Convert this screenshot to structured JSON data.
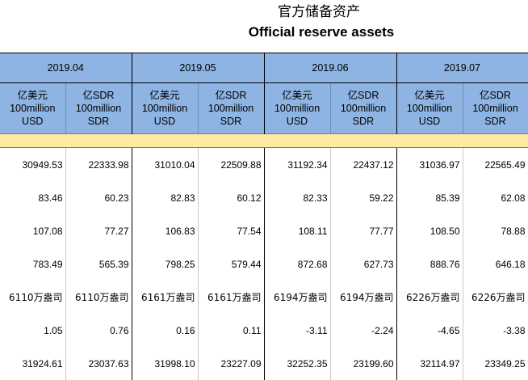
{
  "header": {
    "title_zh": "官方储备资产",
    "title_en": "Official reserve assets"
  },
  "periods": [
    "2019.04",
    "2019.05",
    "2019.06",
    "2019.07"
  ],
  "units": {
    "usd": [
      "亿美元",
      "100million",
      "USD"
    ],
    "sdr": [
      "亿SDR",
      "100million",
      "SDR"
    ]
  },
  "rows": [
    [
      "30949.53",
      "22333.98",
      "31010.04",
      "22509.88",
      "31192.34",
      "22437.12",
      "31036.97",
      "22565.49"
    ],
    [
      "83.46",
      "60.23",
      "82.83",
      "60.12",
      "82.33",
      "59.22",
      "85.39",
      "62.08"
    ],
    [
      "107.08",
      "77.27",
      "106.83",
      "77.54",
      "108.11",
      "77.77",
      "108.50",
      "78.88"
    ],
    [
      "783.49",
      "565.39",
      "798.25",
      "579.44",
      "872.68",
      "627.73",
      "888.76",
      "646.18"
    ],
    [
      "6110万盎司",
      "6110万盎司",
      "6161万盎司",
      "6161万盎司",
      "6194万盎司",
      "6194万盎司",
      "6226万盎司",
      "6226万盎司"
    ],
    [
      "1.05",
      "0.76",
      "0.16",
      "0.11",
      "-3.11",
      "-2.24",
      "-4.65",
      "-3.38"
    ],
    [
      "31924.61",
      "23037.63",
      "31998.10",
      "23227.09",
      "32252.35",
      "23199.60",
      "32114.97",
      "23349.25"
    ]
  ]
}
